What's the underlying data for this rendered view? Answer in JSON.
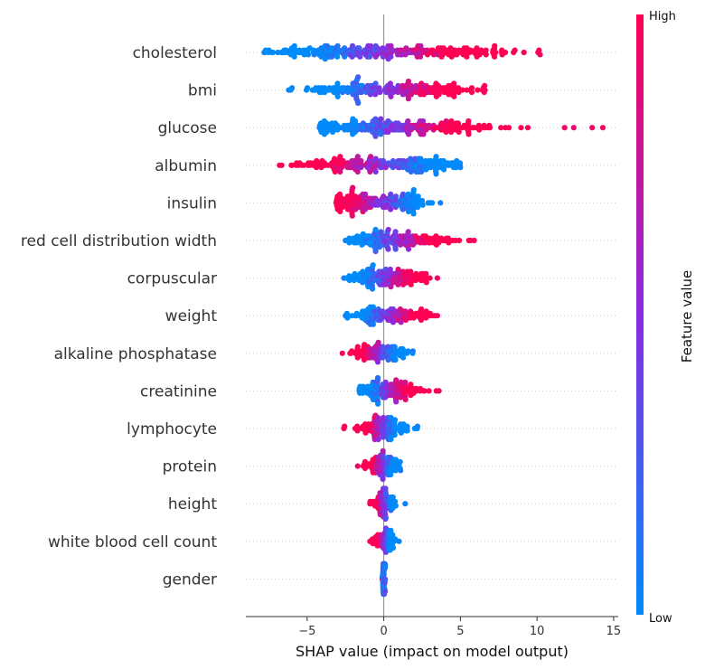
{
  "chart_data": {
    "type": "scatter",
    "subtype": "shap-beeswarm",
    "xlabel": "SHAP value (impact on model output)",
    "xlim": [
      -9,
      15.3
    ],
    "xticks": [
      -5,
      0,
      5,
      10,
      15
    ],
    "xtick_labels": [
      "−5",
      "0",
      "5",
      "10",
      "15"
    ],
    "colorbar": {
      "title": "Feature value",
      "high_label": "High",
      "low_label": "Low",
      "low_color": "#008bfb",
      "mid_color": "#8a2be2",
      "high_color": "#ff0052"
    },
    "features": [
      {
        "name": "cholesterol",
        "min": -7.8,
        "max": 10.2,
        "low_center": -3.0,
        "high_center": 3.0,
        "density": 1.0
      },
      {
        "name": "bmi",
        "min": -6.2,
        "max": 6.6,
        "low_center": -2.0,
        "high_center": 2.5,
        "density": 0.8
      },
      {
        "name": "glucose",
        "min": -4.2,
        "max": 14.3,
        "low_center": -1.2,
        "high_center": 3.2,
        "density": 0.85
      },
      {
        "name": "albumin",
        "min": -6.8,
        "max": 5.0,
        "low_center": 2.2,
        "high_center": -2.5,
        "density": 0.8
      },
      {
        "name": "insulin",
        "min": -3.1,
        "max": 3.7,
        "low_center": 1.4,
        "high_center": -1.6,
        "density": 0.7
      },
      {
        "name": "red cell distribution width",
        "min": -2.5,
        "max": 5.9,
        "low_center": -0.5,
        "high_center": 2.3,
        "density": 0.6
      },
      {
        "name": "corpuscular",
        "min": -2.6,
        "max": 3.5,
        "low_center": -0.8,
        "high_center": 1.3,
        "density": 0.55
      },
      {
        "name": "weight",
        "min": -2.5,
        "max": 3.5,
        "low_center": -0.7,
        "high_center": 1.4,
        "density": 0.45
      },
      {
        "name": "alkaline phosphatase",
        "min": -2.7,
        "max": 1.9,
        "low_center": 0.5,
        "high_center": -0.9,
        "density": 0.35
      },
      {
        "name": "creatinine",
        "min": -1.6,
        "max": 3.6,
        "low_center": -0.5,
        "high_center": 1.2,
        "density": 0.45
      },
      {
        "name": "lymphocyte",
        "min": -2.6,
        "max": 2.2,
        "low_center": 0.5,
        "high_center": -0.7,
        "density": 0.4
      },
      {
        "name": "protein",
        "min": -1.7,
        "max": 1.1,
        "low_center": 0.4,
        "high_center": -0.5,
        "density": 0.3
      },
      {
        "name": "height",
        "min": -0.9,
        "max": 1.4,
        "low_center": 0.4,
        "high_center": -0.3,
        "density": 0.22
      },
      {
        "name": "white blood cell count",
        "min": -0.9,
        "max": 1.0,
        "low_center": 0.3,
        "high_center": -0.2,
        "density": 0.18
      },
      {
        "name": "gender",
        "min": -0.1,
        "max": 0.1,
        "low_center": 0.0,
        "high_center": 0.0,
        "density": 0.1
      }
    ]
  }
}
